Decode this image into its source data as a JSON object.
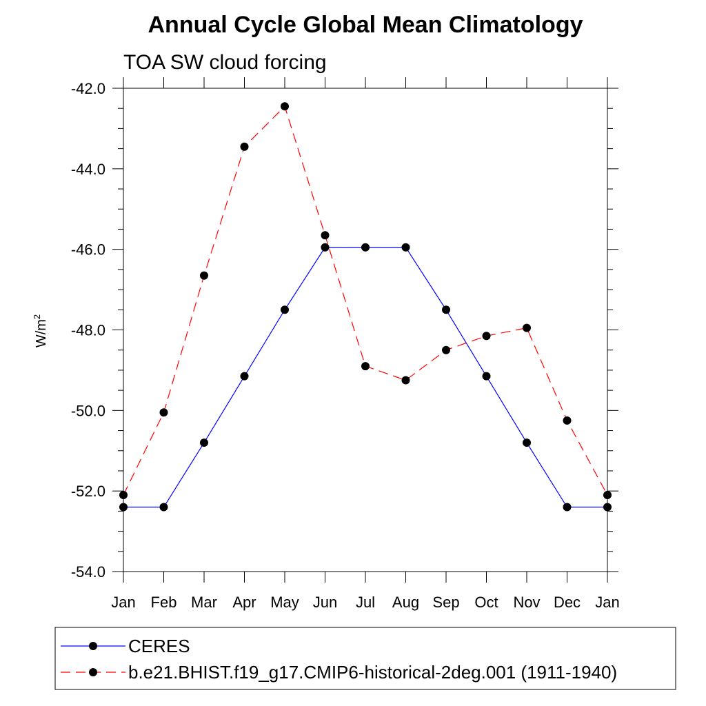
{
  "chart_data": {
    "type": "line",
    "title": "Annual Cycle Global Mean Climatology",
    "subtitle": "TOA SW cloud forcing",
    "ylabel": "W/m",
    "ylabel_superscript": "2",
    "ylim": [
      -54.0,
      -42.0
    ],
    "yticks": [
      "-42.0",
      "-44.0",
      "-46.0",
      "-48.0",
      "-50.0",
      "-52.0",
      "-54.0"
    ],
    "categories": [
      "Jan",
      "Feb",
      "Mar",
      "Apr",
      "May",
      "Jun",
      "Jul",
      "Aug",
      "Sep",
      "Oct",
      "Nov",
      "Dec",
      "Jan"
    ],
    "grid": false,
    "legend_placement": "bottom",
    "series": [
      {
        "name": "CERES",
        "color": "#0000ff",
        "dash": "solid",
        "values": [
          -52.4,
          -52.4,
          -50.8,
          -49.15,
          -47.5,
          -45.95,
          -45.95,
          -45.95,
          -47.5,
          -49.15,
          -50.8,
          -52.4,
          -52.4
        ]
      },
      {
        "name": "b.e21.BHIST.f19_g17.CMIP6-historical-2deg.001 (1911-1940)",
        "color": "#ff0000",
        "dash": "dashed",
        "values": [
          -52.1,
          -50.05,
          -46.65,
          -43.45,
          -42.45,
          -45.65,
          -48.9,
          -49.25,
          -48.5,
          -48.15,
          -47.95,
          -50.25,
          -52.1
        ]
      }
    ]
  }
}
